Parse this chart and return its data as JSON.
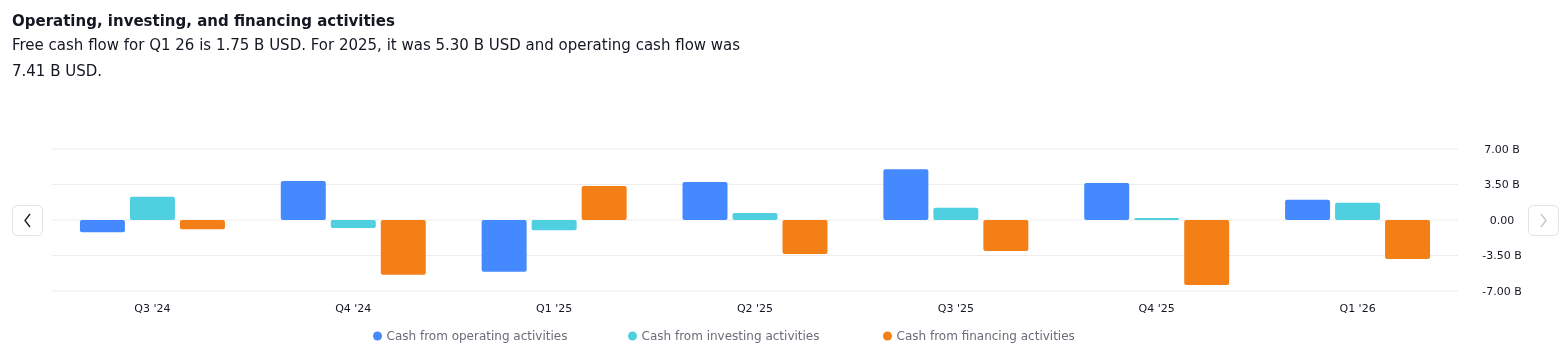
{
  "chart_data": {
    "type": "bar",
    "title": "Operating, investing, and financing activities",
    "subtitle": "Free cash flow for Q1 26 is 1.75 B USD. For 2025, it was 5.30 B USD and operating cash flow was 7.41 B USD.",
    "categories": [
      "Q3 '24",
      "Q4 '24",
      "Q1 '25",
      "Q2 '25",
      "Q3 '25",
      "Q4 '25",
      "Q1 '26"
    ],
    "series": [
      {
        "name": "Cash from operating activities",
        "color": "#4589ff",
        "values": [
          -1.2,
          3.85,
          -5.1,
          3.75,
          5.0,
          3.65,
          2.0
        ]
      },
      {
        "name": "Cash from investing activities",
        "color": "#4fd0e0",
        "values": [
          2.3,
          -0.8,
          -1.0,
          0.7,
          1.2,
          0.2,
          1.7
        ]
      },
      {
        "name": "Cash from financing activities",
        "color": "#f47f17",
        "values": [
          -0.9,
          -5.4,
          3.35,
          -3.35,
          -3.05,
          -6.4,
          -3.85
        ]
      }
    ],
    "ylim": [
      -7,
      7
    ],
    "yticks": [
      {
        "value": -7,
        "label": "-7.00 B"
      },
      {
        "value": -3.5,
        "label": "-3.50 B"
      },
      {
        "value": 0,
        "label": "0.00"
      },
      {
        "value": 3.5,
        "label": "3.50 B"
      },
      {
        "value": 7,
        "label": "7.00 B"
      }
    ],
    "grid": "y",
    "legend": "bottom"
  }
}
